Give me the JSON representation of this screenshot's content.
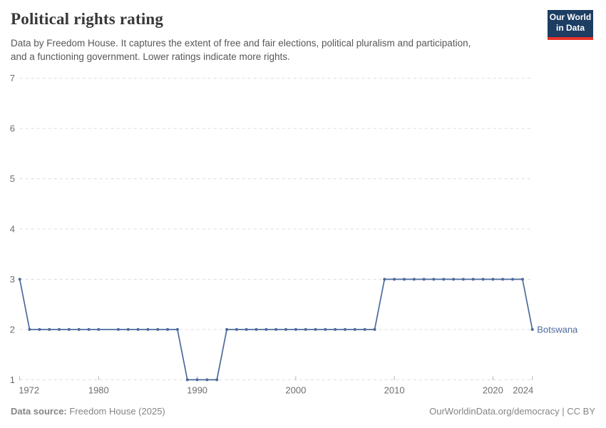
{
  "header": {
    "title": "Political rights rating",
    "subtitle_line1": "Data by Freedom House. It captures the extent of free and fair elections, political pluralism and participation,",
    "subtitle_line2": "and a functioning government. Lower ratings indicate more rights."
  },
  "logo": {
    "line1": "Our World",
    "line2": "in Data",
    "bg_color": "#1d3d63",
    "accent_color": "#e7332b"
  },
  "chart_data": {
    "type": "line",
    "title": "Political rights rating",
    "entity_label": "Botswana",
    "xlim": [
      1972,
      2024
    ],
    "ylim": [
      1,
      7
    ],
    "x_ticks": [
      1972,
      1980,
      1990,
      2000,
      2010,
      2020,
      2024
    ],
    "y_ticks": [
      1,
      2,
      3,
      4,
      5,
      6,
      7
    ],
    "grid": "horizontal-dashed",
    "legend_position": "right-of-line-end",
    "series": [
      {
        "name": "Botswana",
        "color": "#4c6a9c",
        "points": [
          [
            1972,
            3
          ],
          [
            1973,
            2
          ],
          [
            1974,
            2
          ],
          [
            1975,
            2
          ],
          [
            1976,
            2
          ],
          [
            1977,
            2
          ],
          [
            1978,
            2
          ],
          [
            1979,
            2
          ],
          [
            1980,
            2
          ],
          [
            1982,
            2
          ],
          [
            1983,
            2
          ],
          [
            1984,
            2
          ],
          [
            1985,
            2
          ],
          [
            1986,
            2
          ],
          [
            1987,
            2
          ],
          [
            1988,
            2
          ],
          [
            1989,
            1
          ],
          [
            1990,
            1
          ],
          [
            1991,
            1
          ],
          [
            1992,
            1
          ],
          [
            1993,
            2
          ],
          [
            1994,
            2
          ],
          [
            1995,
            2
          ],
          [
            1996,
            2
          ],
          [
            1997,
            2
          ],
          [
            1998,
            2
          ],
          [
            1999,
            2
          ],
          [
            2000,
            2
          ],
          [
            2001,
            2
          ],
          [
            2002,
            2
          ],
          [
            2003,
            2
          ],
          [
            2004,
            2
          ],
          [
            2005,
            2
          ],
          [
            2006,
            2
          ],
          [
            2007,
            2
          ],
          [
            2008,
            2
          ],
          [
            2009,
            3
          ],
          [
            2010,
            3
          ],
          [
            2011,
            3
          ],
          [
            2012,
            3
          ],
          [
            2013,
            3
          ],
          [
            2014,
            3
          ],
          [
            2015,
            3
          ],
          [
            2016,
            3
          ],
          [
            2017,
            3
          ],
          [
            2018,
            3
          ],
          [
            2019,
            3
          ],
          [
            2020,
            3
          ],
          [
            2021,
            3
          ],
          [
            2022,
            3
          ],
          [
            2023,
            3
          ],
          [
            2024,
            2
          ]
        ]
      }
    ]
  },
  "footer": {
    "source_label": "Data source:",
    "source_value": " Freedom House (2025)",
    "right_text": "OurWorldinData.org/democracy | CC BY"
  },
  "colors": {
    "line": "#4c6a9c",
    "title_text": "#383838",
    "subtitle_text": "#575757",
    "axis_label": "#6e6e6e",
    "gridline": "#dcdcdc",
    "tick_mark": "#b3b3b3",
    "footer_text": "#858585"
  }
}
